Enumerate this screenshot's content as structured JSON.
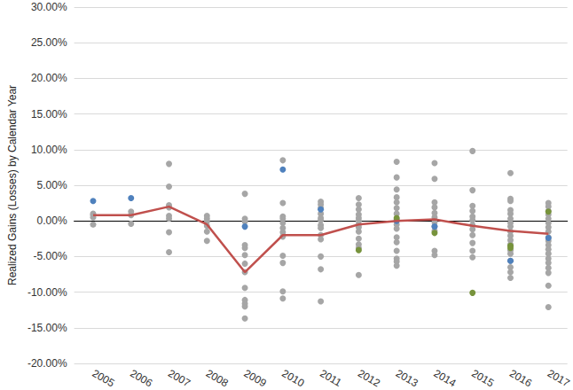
{
  "chart_data": {
    "type": "scatter",
    "y_label": "Realized Gains (Losses) by Calendar Year",
    "categories": [
      "2005",
      "2006",
      "2007",
      "2008",
      "2009",
      "2010",
      "2011",
      "2012",
      "2013",
      "2014",
      "2015",
      "2016",
      "2017"
    ],
    "ylim": [
      -20,
      30
    ],
    "yticks": [
      {
        "value": -20,
        "label": "-20.00%"
      },
      {
        "value": -15,
        "label": "-15.00%"
      },
      {
        "value": -10,
        "label": "-10.00%"
      },
      {
        "value": -5,
        "label": "-5.00%"
      },
      {
        "value": 0,
        "label": "0.00%"
      },
      {
        "value": 5,
        "label": "5.00%"
      },
      {
        "value": 10,
        "label": "10.00%"
      },
      {
        "value": 15,
        "label": "15.00%"
      },
      {
        "value": 20,
        "label": "20.00%"
      },
      {
        "value": 25,
        "label": "25.00%"
      },
      {
        "value": 30,
        "label": "30.00%"
      }
    ],
    "grid": true,
    "series": [
      {
        "type": "scatter",
        "marker": "circle",
        "color": "#a6a6a6",
        "x": [
          "2005",
          "2005",
          "2005",
          "2005",
          "2006",
          "2006",
          "2006",
          "2007",
          "2007",
          "2007",
          "2007",
          "2007",
          "2007",
          "2007",
          "2007",
          "2008",
          "2008",
          "2008",
          "2008",
          "2008",
          "2008",
          "2009",
          "2009",
          "2009",
          "2009",
          "2009",
          "2009",
          "2009",
          "2009",
          "2009",
          "2009",
          "2009",
          "2009",
          "2009",
          "2010",
          "2010",
          "2010",
          "2010",
          "2010",
          "2010",
          "2010",
          "2010",
          "2010",
          "2010",
          "2010",
          "2010",
          "2011",
          "2011",
          "2011",
          "2011",
          "2011",
          "2011",
          "2011",
          "2011",
          "2011",
          "2011",
          "2011",
          "2011",
          "2011",
          "2012",
          "2012",
          "2012",
          "2012",
          "2012",
          "2012",
          "2012",
          "2012",
          "2012",
          "2012",
          "2012",
          "2012",
          "2012",
          "2013",
          "2013",
          "2013",
          "2013",
          "2013",
          "2013",
          "2013",
          "2013",
          "2013",
          "2013",
          "2013",
          "2013",
          "2013",
          "2013",
          "2013",
          "2013",
          "2014",
          "2014",
          "2014",
          "2014",
          "2014",
          "2014",
          "2014",
          "2014",
          "2014",
          "2014",
          "2014",
          "2015",
          "2015",
          "2015",
          "2015",
          "2015",
          "2015",
          "2015",
          "2015",
          "2015",
          "2015",
          "2015",
          "2015",
          "2016",
          "2016",
          "2016",
          "2016",
          "2016",
          "2016",
          "2016",
          "2016",
          "2016",
          "2016",
          "2016",
          "2016",
          "2016",
          "2016",
          "2016",
          "2016",
          "2016",
          "2016",
          "2017",
          "2017",
          "2017",
          "2017",
          "2017",
          "2017",
          "2017",
          "2017",
          "2017",
          "2017",
          "2017",
          "2017",
          "2017",
          "2017",
          "2017",
          "2017",
          "2017",
          "2017",
          "2017"
        ],
        "values": [
          1.0,
          0.8,
          0.5,
          -0.5,
          1.3,
          0.8,
          -0.4,
          8.0,
          4.8,
          2.2,
          1.9,
          0.7,
          0.3,
          -1.6,
          -4.4,
          0.7,
          0.3,
          -0.1,
          -0.7,
          -1.5,
          -2.8,
          3.8,
          0.3,
          -0.1,
          -3.4,
          -3.8,
          -4.8,
          -6.0,
          -7.2,
          -9.4,
          -11.1,
          -11.6,
          -12.0,
          -13.7,
          8.5,
          2.5,
          0.6,
          0.3,
          -0.3,
          -1.0,
          -1.6,
          -2.2,
          -4.9,
          -5.9,
          -9.9,
          -10.9,
          2.7,
          2.3,
          1.8,
          1.0,
          0.4,
          0.1,
          -0.6,
          -1.0,
          -2.0,
          -2.6,
          -5.0,
          -6.8,
          -11.3,
          3.2,
          2.3,
          1.6,
          0.9,
          0.4,
          0.0,
          -0.5,
          -0.9,
          -1.5,
          -2.5,
          -3.3,
          -3.8,
          -7.6,
          8.3,
          6.1,
          4.4,
          3.3,
          2.6,
          1.8,
          1.0,
          0.2,
          -0.5,
          -1.1,
          -2.3,
          -3.0,
          -4.2,
          -5.3,
          -5.7,
          -6.3,
          8.1,
          5.9,
          2.6,
          1.9,
          1.1,
          0.5,
          -0.2,
          -0.8,
          -1.4,
          -4.2,
          -4.8,
          9.8,
          4.3,
          2.1,
          1.4,
          0.6,
          0.1,
          -0.6,
          -1.2,
          -2.0,
          -3.1,
          -4.2,
          -5.1,
          6.7,
          3.1,
          2.8,
          1.5,
          1.0,
          0.3,
          -0.3,
          -0.8,
          -1.5,
          -2.1,
          -2.7,
          -3.3,
          -4.1,
          -4.6,
          -5.6,
          -6.5,
          -7.2,
          -8.0,
          2.5,
          2.0,
          1.4,
          0.9,
          0.3,
          -0.3,
          -0.9,
          -1.5,
          -2.3,
          -2.8,
          -3.4,
          -4.0,
          -4.6,
          -5.3,
          -5.9,
          -6.6,
          -7.3,
          -9.1,
          -12.1
        ]
      },
      {
        "type": "scatter",
        "marker": "circle",
        "color": "#4f81bd",
        "x": [
          "2005",
          "2006",
          "2009",
          "2010",
          "2011",
          "2013",
          "2014",
          "2016",
          "2017"
        ],
        "values": [
          2.8,
          3.2,
          -0.8,
          7.2,
          1.6,
          0.0,
          -0.8,
          -5.6,
          -2.4
        ]
      },
      {
        "type": "scatter",
        "marker": "circle",
        "color": "#77933c",
        "x": [
          "2012",
          "2013",
          "2014",
          "2015",
          "2016",
          "2016",
          "2017"
        ],
        "values": [
          -4.1,
          0.4,
          -1.7,
          -10.1,
          -3.5,
          -3.8,
          1.3
        ]
      },
      {
        "type": "line",
        "line_style": "solid",
        "color": "#c0504d",
        "x": [
          "2005",
          "2006",
          "2007",
          "2008",
          "2009",
          "2010",
          "2011",
          "2012",
          "2013",
          "2014",
          "2015",
          "2016",
          "2017"
        ],
        "values": [
          0.8,
          0.8,
          2.0,
          -0.5,
          -7.2,
          -2.0,
          -2.0,
          -0.5,
          0.0,
          0.2,
          -0.7,
          -1.4,
          -1.8
        ]
      }
    ]
  }
}
